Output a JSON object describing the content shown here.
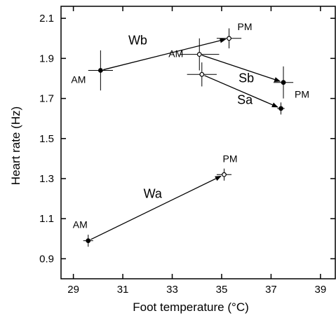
{
  "chart_data": {
    "type": "scatter",
    "title": "",
    "xlabel": "Foot temperature (°C)",
    "ylabel": "Heart rate (Hz)",
    "xlim": [
      28.5,
      39.6
    ],
    "ylim": [
      0.8,
      2.16
    ],
    "xticks": [
      29,
      31,
      33,
      35,
      37,
      39
    ],
    "yticks": [
      0.9,
      1.1,
      1.3,
      1.5,
      1.7,
      1.9,
      2.1
    ],
    "xtick_labels": [
      "29",
      "31",
      "33",
      "35",
      "37",
      "39"
    ],
    "ytick_labels": [
      "0.9",
      "1.1",
      "1.3",
      "1.5",
      "1.7",
      "1.9",
      "2.1"
    ],
    "grid": false,
    "series": [
      {
        "name": "Wb",
        "marker": "filled-to-open",
        "points": [
          {
            "label": "AM",
            "x": 30.1,
            "y": 1.84,
            "xerr": 0.5,
            "yerr": 0.1
          },
          {
            "label": "PM",
            "x": 35.3,
            "y": 2.0,
            "xerr": 0.5,
            "yerr": 0.05
          }
        ]
      },
      {
        "name": "Sb",
        "marker": "open-to-filled",
        "points": [
          {
            "label": "AM",
            "x": 34.1,
            "y": 1.92,
            "xerr": 0.8,
            "yerr": 0.08
          },
          {
            "label": "PM",
            "x": 37.5,
            "y": 1.78,
            "xerr": 0.4,
            "yerr": 0.08
          }
        ]
      },
      {
        "name": "Sa",
        "marker": "open-to-filled",
        "points": [
          {
            "label": "AM",
            "x": 34.2,
            "y": 1.82,
            "xerr": 0.6,
            "yerr": 0.06
          },
          {
            "label": "PM",
            "x": 37.4,
            "y": 1.65,
            "xerr": 0.15,
            "yerr": 0.03
          }
        ]
      },
      {
        "name": "Wa",
        "marker": "filled-to-open",
        "points": [
          {
            "label": "AM",
            "x": 29.6,
            "y": 0.99,
            "xerr": 0.2,
            "yerr": 0.03
          },
          {
            "label": "PM",
            "x": 35.1,
            "y": 1.32,
            "xerr": 0.3,
            "yerr": 0.03
          }
        ]
      }
    ]
  }
}
